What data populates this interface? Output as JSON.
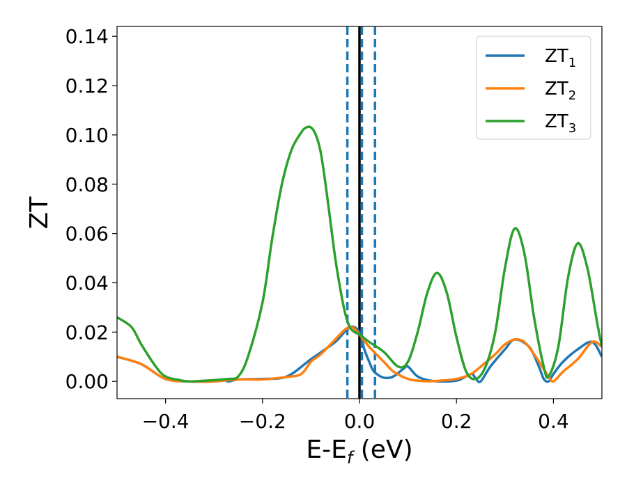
{
  "chart_data": {
    "type": "line",
    "xlabel_main": "E-E",
    "xlabel_sub": "f",
    "xlabel_unit": " (eV)",
    "ylabel": "ZT",
    "xlim": [
      -0.5,
      0.5
    ],
    "ylim": [
      -0.007,
      0.144
    ],
    "grid": false,
    "legend_position": "top-right",
    "xticks": [
      -0.4,
      -0.2,
      0.0,
      0.2,
      0.4
    ],
    "xtick_labels": [
      "−0.4",
      "−0.2",
      "0.0",
      "0.2",
      "0.4"
    ],
    "yticks": [
      0.0,
      0.02,
      0.04,
      0.06,
      0.08,
      0.1,
      0.12,
      0.14
    ],
    "ytick_labels": [
      "0.00",
      "0.02",
      "0.04",
      "0.06",
      "0.08",
      "0.10",
      "0.12",
      "0.14"
    ],
    "vlines": [
      {
        "x": 0.0,
        "style": "solid",
        "color": "#000000"
      },
      {
        "x": -0.025,
        "style": "dashed",
        "color": "#1f77b4"
      },
      {
        "x": 0.005,
        "style": "dashed",
        "color": "#1f77b4"
      },
      {
        "x": 0.032,
        "style": "dashed",
        "color": "#1f77b4"
      }
    ],
    "series": [
      {
        "name_main": "ZT",
        "name_sub": "1",
        "color": "#1f77b4",
        "x": [
          -0.5,
          -0.45,
          -0.4,
          -0.35,
          -0.3,
          -0.28,
          -0.27,
          -0.25,
          -0.2,
          -0.15,
          -0.1,
          -0.05,
          -0.02,
          0.0,
          0.01,
          0.02,
          0.03,
          0.05,
          0.07,
          0.09,
          0.1,
          0.12,
          0.15,
          0.2,
          0.23,
          0.24,
          0.25,
          0.27,
          0.3,
          0.32,
          0.35,
          0.37,
          0.38,
          0.39,
          0.4,
          0.42,
          0.45,
          0.48,
          0.5
        ],
        "y": [
          0.01,
          0.007,
          0.001,
          0.0,
          0.0,
          0.0005,
          0.0,
          0.0008,
          0.001,
          0.002,
          0.009,
          0.016,
          0.022,
          0.02,
          0.013,
          0.008,
          0.004,
          0.0015,
          0.002,
          0.005,
          0.006,
          0.002,
          0.0002,
          0.0003,
          0.003,
          0.001,
          0.0,
          0.006,
          0.013,
          0.017,
          0.014,
          0.006,
          0.001,
          0.0,
          0.003,
          0.008,
          0.013,
          0.016,
          0.01
        ]
      },
      {
        "name_main": "ZT",
        "name_sub": "2",
        "color": "#ff7f0e",
        "x": [
          -0.5,
          -0.45,
          -0.4,
          -0.35,
          -0.3,
          -0.25,
          -0.2,
          -0.15,
          -0.12,
          -0.1,
          -0.08,
          -0.05,
          -0.03,
          -0.015,
          0.0,
          0.02,
          0.05,
          0.07,
          0.1,
          0.12,
          0.15,
          0.2,
          0.23,
          0.25,
          0.28,
          0.3,
          0.32,
          0.34,
          0.36,
          0.38,
          0.39,
          0.4,
          0.42,
          0.45,
          0.48,
          0.5
        ],
        "y": [
          0.01,
          0.007,
          0.001,
          0.0,
          0.0,
          0.0008,
          0.0008,
          0.0018,
          0.003,
          0.008,
          0.011,
          0.017,
          0.021,
          0.022,
          0.019,
          0.014,
          0.008,
          0.004,
          0.001,
          0.0003,
          0.0001,
          0.001,
          0.003,
          0.006,
          0.011,
          0.015,
          0.017,
          0.016,
          0.011,
          0.005,
          0.002,
          0.0,
          0.004,
          0.009,
          0.016,
          0.014
        ]
      },
      {
        "name_main": "ZT",
        "name_sub": "3",
        "color": "#2ca02c",
        "x": [
          -0.5,
          -0.47,
          -0.45,
          -0.42,
          -0.4,
          -0.37,
          -0.35,
          -0.3,
          -0.27,
          -0.25,
          -0.23,
          -0.2,
          -0.18,
          -0.16,
          -0.14,
          -0.12,
          -0.11,
          -0.1,
          -0.09,
          -0.08,
          -0.07,
          -0.06,
          -0.05,
          -0.04,
          -0.03,
          -0.02,
          -0.01,
          0.0,
          0.02,
          0.05,
          0.08,
          0.1,
          0.12,
          0.14,
          0.16,
          0.18,
          0.2,
          0.22,
          0.24,
          0.26,
          0.28,
          0.3,
          0.32,
          0.34,
          0.36,
          0.38,
          0.39,
          0.41,
          0.43,
          0.45,
          0.47,
          0.49,
          0.5
        ],
        "y": [
          0.026,
          0.022,
          0.015,
          0.006,
          0.002,
          0.0005,
          0.0,
          0.0005,
          0.001,
          0.002,
          0.01,
          0.032,
          0.058,
          0.08,
          0.094,
          0.101,
          0.103,
          0.103,
          0.1,
          0.093,
          0.08,
          0.065,
          0.05,
          0.038,
          0.028,
          0.022,
          0.02,
          0.019,
          0.016,
          0.012,
          0.006,
          0.008,
          0.02,
          0.036,
          0.044,
          0.036,
          0.018,
          0.004,
          0.001,
          0.006,
          0.02,
          0.046,
          0.062,
          0.052,
          0.026,
          0.006,
          0.002,
          0.014,
          0.042,
          0.056,
          0.046,
          0.024,
          0.014
        ]
      }
    ]
  }
}
